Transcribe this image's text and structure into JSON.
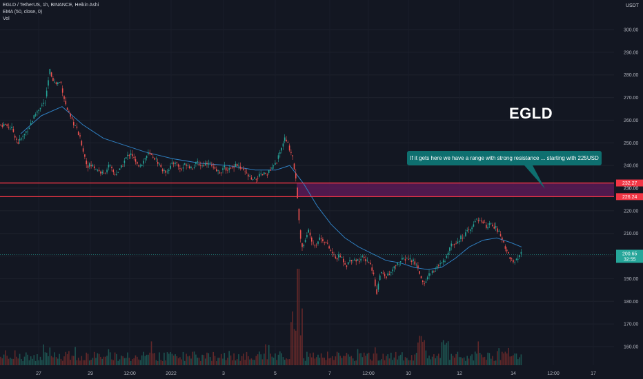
{
  "legend": {
    "symbol_line": "EGLD / TetherUS, 1h, BINANCE, Heikin Ashi",
    "ema_line": "EMA (50, close, 0)",
    "vol_line": "Vol"
  },
  "currency": "USDT",
  "annotation_title": "EGLD",
  "callout_text": "If it gets here we have a range with strong resistance ... starting with 225USD",
  "colors": {
    "background": "#131722",
    "up": "#26a69a",
    "down": "#ef5350",
    "ema": "#2f7fc1",
    "resistance_line": "#f23645",
    "zone_fill": "#5b1a55",
    "callout": "#0e6f6f"
  },
  "chart_data": {
    "type": "candlestick",
    "style": "Heikin Ashi",
    "interval": "1h",
    "y_axis": {
      "ticks": [
        160,
        170,
        180,
        190,
        200,
        210,
        220,
        230,
        240,
        250,
        260,
        270,
        280,
        290,
        300
      ],
      "tick_labels": [
        "160.00",
        "170.00",
        "180.00",
        "190.00",
        "200.00",
        "210.00",
        "220.00",
        "230.00",
        "240.00",
        "250.00",
        "260.00",
        "270.00",
        "280.00",
        "290.00",
        "300.00"
      ],
      "ylim": [
        155,
        311
      ]
    },
    "x_axis": {
      "tick_labels": [
        "27",
        "29",
        "12:00",
        "2022",
        "3",
        "5",
        "7",
        "12:00",
        "10",
        "12",
        "14",
        "12:00",
        "17"
      ]
    },
    "price_path": [
      {
        "x": 0,
        "y": 258
      },
      {
        "x": 8,
        "y": 258
      },
      {
        "x": 18,
        "y": 256
      },
      {
        "x": 26,
        "y": 250
      },
      {
        "x": 34,
        "y": 253
      },
      {
        "x": 42,
        "y": 257
      },
      {
        "x": 50,
        "y": 262
      },
      {
        "x": 58,
        "y": 266
      },
      {
        "x": 66,
        "y": 268
      },
      {
        "x": 72,
        "y": 282
      },
      {
        "x": 80,
        "y": 276
      },
      {
        "x": 88,
        "y": 277
      },
      {
        "x": 95,
        "y": 267
      },
      {
        "x": 102,
        "y": 261
      },
      {
        "x": 110,
        "y": 257
      },
      {
        "x": 118,
        "y": 250
      },
      {
        "x": 126,
        "y": 240
      },
      {
        "x": 134,
        "y": 240
      },
      {
        "x": 142,
        "y": 238
      },
      {
        "x": 150,
        "y": 236
      },
      {
        "x": 158,
        "y": 240
      },
      {
        "x": 166,
        "y": 236
      },
      {
        "x": 174,
        "y": 238
      },
      {
        "x": 182,
        "y": 243
      },
      {
        "x": 190,
        "y": 246
      },
      {
        "x": 198,
        "y": 240
      },
      {
        "x": 206,
        "y": 241
      },
      {
        "x": 214,
        "y": 245
      },
      {
        "x": 222,
        "y": 244
      },
      {
        "x": 230,
        "y": 241
      },
      {
        "x": 238,
        "y": 237
      },
      {
        "x": 246,
        "y": 239
      },
      {
        "x": 254,
        "y": 242
      },
      {
        "x": 262,
        "y": 238
      },
      {
        "x": 270,
        "y": 241
      },
      {
        "x": 278,
        "y": 239
      },
      {
        "x": 286,
        "y": 241
      },
      {
        "x": 294,
        "y": 240
      },
      {
        "x": 302,
        "y": 242
      },
      {
        "x": 310,
        "y": 238
      },
      {
        "x": 318,
        "y": 237
      },
      {
        "x": 326,
        "y": 239
      },
      {
        "x": 334,
        "y": 238
      },
      {
        "x": 342,
        "y": 241
      },
      {
        "x": 350,
        "y": 238
      },
      {
        "x": 358,
        "y": 236
      },
      {
        "x": 366,
        "y": 233
      },
      {
        "x": 374,
        "y": 235
      },
      {
        "x": 382,
        "y": 236
      },
      {
        "x": 390,
        "y": 237
      },
      {
        "x": 398,
        "y": 240
      },
      {
        "x": 406,
        "y": 245
      },
      {
        "x": 412,
        "y": 252
      },
      {
        "x": 418,
        "y": 249
      },
      {
        "x": 424,
        "y": 244
      },
      {
        "x": 428,
        "y": 236
      },
      {
        "x": 431,
        "y": 226
      },
      {
        "x": 434,
        "y": 212
      },
      {
        "x": 438,
        "y": 204
      },
      {
        "x": 443,
        "y": 207
      },
      {
        "x": 448,
        "y": 212
      },
      {
        "x": 453,
        "y": 206
      },
      {
        "x": 458,
        "y": 205
      },
      {
        "x": 463,
        "y": 208
      },
      {
        "x": 470,
        "y": 207
      },
      {
        "x": 478,
        "y": 203
      },
      {
        "x": 486,
        "y": 199
      },
      {
        "x": 494,
        "y": 200
      },
      {
        "x": 502,
        "y": 196
      },
      {
        "x": 510,
        "y": 199
      },
      {
        "x": 518,
        "y": 198
      },
      {
        "x": 526,
        "y": 199
      },
      {
        "x": 534,
        "y": 198
      },
      {
        "x": 540,
        "y": 194
      },
      {
        "x": 546,
        "y": 184
      },
      {
        "x": 552,
        "y": 193
      },
      {
        "x": 558,
        "y": 191
      },
      {
        "x": 566,
        "y": 192
      },
      {
        "x": 574,
        "y": 196
      },
      {
        "x": 582,
        "y": 198
      },
      {
        "x": 590,
        "y": 199
      },
      {
        "x": 598,
        "y": 198
      },
      {
        "x": 606,
        "y": 195
      },
      {
        "x": 614,
        "y": 187
      },
      {
        "x": 622,
        "y": 192
      },
      {
        "x": 630,
        "y": 194
      },
      {
        "x": 638,
        "y": 196
      },
      {
        "x": 646,
        "y": 198
      },
      {
        "x": 652,
        "y": 205
      },
      {
        "x": 660,
        "y": 206
      },
      {
        "x": 668,
        "y": 208
      },
      {
        "x": 676,
        "y": 210
      },
      {
        "x": 684,
        "y": 212
      },
      {
        "x": 690,
        "y": 217
      },
      {
        "x": 698,
        "y": 215
      },
      {
        "x": 706,
        "y": 213
      },
      {
        "x": 714,
        "y": 214
      },
      {
        "x": 722,
        "y": 211
      },
      {
        "x": 730,
        "y": 206
      },
      {
        "x": 738,
        "y": 200
      },
      {
        "x": 744,
        "y": 197
      },
      {
        "x": 750,
        "y": 198
      },
      {
        "x": 756,
        "y": 201
      }
    ],
    "ema_50": [
      {
        "x": 30,
        "y": 254
      },
      {
        "x": 60,
        "y": 262
      },
      {
        "x": 90,
        "y": 266
      },
      {
        "x": 120,
        "y": 258
      },
      {
        "x": 150,
        "y": 252
      },
      {
        "x": 180,
        "y": 249
      },
      {
        "x": 210,
        "y": 246
      },
      {
        "x": 250,
        "y": 243
      },
      {
        "x": 290,
        "y": 241
      },
      {
        "x": 330,
        "y": 240
      },
      {
        "x": 370,
        "y": 238
      },
      {
        "x": 400,
        "y": 238
      },
      {
        "x": 420,
        "y": 240
      },
      {
        "x": 440,
        "y": 232
      },
      {
        "x": 460,
        "y": 222
      },
      {
        "x": 480,
        "y": 214
      },
      {
        "x": 500,
        "y": 208
      },
      {
        "x": 520,
        "y": 204
      },
      {
        "x": 540,
        "y": 201
      },
      {
        "x": 560,
        "y": 198
      },
      {
        "x": 580,
        "y": 197
      },
      {
        "x": 600,
        "y": 195
      },
      {
        "x": 620,
        "y": 194
      },
      {
        "x": 640,
        "y": 195
      },
      {
        "x": 660,
        "y": 199
      },
      {
        "x": 680,
        "y": 204
      },
      {
        "x": 700,
        "y": 207
      },
      {
        "x": 720,
        "y": 208
      },
      {
        "x": 740,
        "y": 206
      },
      {
        "x": 756,
        "y": 204
      }
    ],
    "resistance_levels": [
      {
        "value": 232.27,
        "label": "232.27"
      },
      {
        "value": 226.24,
        "label": "226.24"
      }
    ],
    "zone": {
      "from_x": 430,
      "y_low": 226.24,
      "y_high": 232.27
    },
    "current_price": {
      "value": 200.65,
      "label": "200.65",
      "countdown": "32:55"
    },
    "axis_overlap_label": "230.00"
  }
}
